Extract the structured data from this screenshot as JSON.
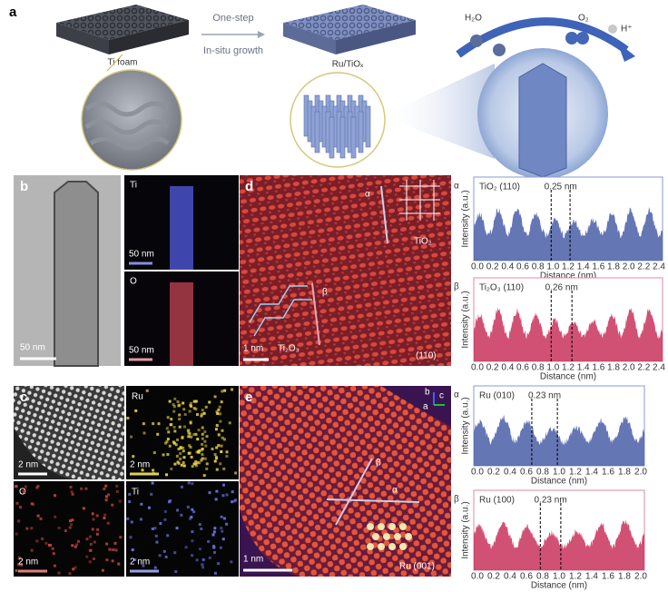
{
  "a": {
    "label": "a",
    "ti_foam": "Ti foam",
    "step1": "One-step",
    "step2": "In-situ growth",
    "product": "Ru/TiOₓ",
    "h2o": "H₂O",
    "o2": "O₂",
    "hplus": "H⁺"
  },
  "b": {
    "label": "b",
    "ti": "Ti",
    "o": "O",
    "scale": [
      "50 nm",
      "50 nm",
      "50 nm"
    ]
  },
  "c": {
    "label": "c",
    "ru": "Ru",
    "o": "O",
    "ti": "Ti",
    "scale": [
      "2 nm",
      "2 nm",
      "2 nm",
      "2 nm"
    ]
  },
  "d": {
    "label": "d",
    "alpha": "α",
    "beta": "β",
    "tio2": "TiO₂",
    "ti2o3": "Ti₂O₃",
    "scale": "1 nm",
    "facet": "(110)"
  },
  "e": {
    "label": "e",
    "alpha": "α",
    "beta": "β",
    "scale": "1 nm",
    "facet": "Ru  (001)",
    "axes": [
      "b",
      "c",
      "a"
    ]
  },
  "profiles": [
    {
      "marker": "α",
      "title": "TiO₂ (110)",
      "spacing": "0.25 nm",
      "ylabel": "Intensity (a.u.)",
      "xlabel": "Distance (nm)",
      "xticks": [
        "0.0",
        "0.2",
        "0.4",
        "0.6",
        "0.8",
        "1.0",
        "1.2",
        "1.4",
        "1.6",
        "1.8",
        "2.0",
        "2.2",
        "2.4"
      ]
    },
    {
      "marker": "β",
      "title": "Ti₂O₃ (110)",
      "spacing": "0.26 nm",
      "ylabel": "Intensity (a.u.)",
      "xlabel": "Distance (nm)",
      "xticks": [
        "0.0",
        "0.2",
        "0.4",
        "0.6",
        "0.8",
        "1.0",
        "1.2",
        "1.4",
        "1.6",
        "1.8",
        "2.0",
        "2.2",
        "2.4"
      ]
    },
    {
      "marker": "α",
      "title": "Ru (010)",
      "spacing": "0.23 nm",
      "ylabel": "Intensity (a.u.)",
      "xlabel": "Distance (nm)",
      "xticks": [
        "0.0",
        "0.2",
        "0.4",
        "0.6",
        "0.8",
        "1.0",
        "1.2",
        "1.4",
        "1.6",
        "1.8",
        "2.0"
      ]
    },
    {
      "marker": "β",
      "title": "Ru (100)",
      "spacing": "0.23 nm",
      "ylabel": "Intensity (a.u.)",
      "xlabel": "Distance (nm)",
      "xticks": [
        "0.0",
        "0.2",
        "0.4",
        "0.6",
        "0.8",
        "1.0",
        "1.2",
        "1.4",
        "1.6",
        "1.8",
        "2.0"
      ]
    }
  ]
}
